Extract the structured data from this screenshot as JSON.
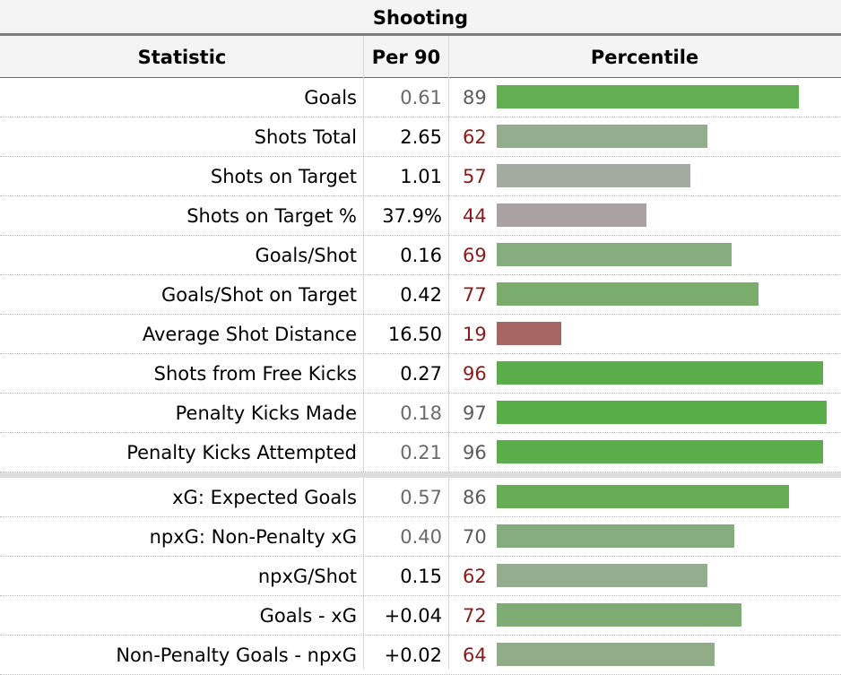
{
  "title": "Shooting",
  "headers": {
    "statistic": "Statistic",
    "per90": "Per 90",
    "percentile": "Percentile"
  },
  "colors": {
    "pct_red_text": "#8b1a1a",
    "pct_gray_text": "#5a5a5a",
    "per90_bold": "#000000",
    "per90_gray": "#6a6a6a"
  },
  "chart_data": {
    "type": "bar",
    "title": "Shooting",
    "xlabel": "Percentile",
    "xlim": [
      0,
      100
    ],
    "groups": [
      {
        "rows": [
          {
            "statistic": "Goals",
            "per90": "0.61",
            "percentile": 89,
            "per90_style": "gray",
            "pct_style": "gray",
            "bar_color": "#63ad53"
          },
          {
            "statistic": "Shots Total",
            "per90": "2.65",
            "percentile": 62,
            "per90_style": "bold",
            "pct_style": "red",
            "bar_color": "#94ad8e"
          },
          {
            "statistic": "Shots on Target",
            "per90": "1.01",
            "percentile": 57,
            "per90_style": "bold",
            "pct_style": "red",
            "bar_color": "#a3aba0"
          },
          {
            "statistic": "Shots on Target %",
            "per90": "37.9%",
            "percentile": 44,
            "per90_style": "bold",
            "pct_style": "red",
            "bar_color": "#aaa2a2"
          },
          {
            "statistic": "Goals/Shot",
            "per90": "0.16",
            "percentile": 69,
            "per90_style": "bold",
            "pct_style": "red",
            "bar_color": "#86ac7e"
          },
          {
            "statistic": "Goals/Shot on Target",
            "per90": "0.42",
            "percentile": 77,
            "per90_style": "bold",
            "pct_style": "red",
            "bar_color": "#7aad6c"
          },
          {
            "statistic": "Average Shot Distance",
            "per90": "16.50",
            "percentile": 19,
            "per90_style": "bold",
            "pct_style": "red",
            "bar_color": "#a76663"
          },
          {
            "statistic": "Shots from Free Kicks",
            "per90": "0.27",
            "percentile": 96,
            "per90_style": "bold",
            "pct_style": "red",
            "bar_color": "#5aad4a"
          },
          {
            "statistic": "Penalty Kicks Made",
            "per90": "0.18",
            "percentile": 97,
            "per90_style": "gray",
            "pct_style": "gray",
            "bar_color": "#59ad49"
          },
          {
            "statistic": "Penalty Kicks Attempted",
            "per90": "0.21",
            "percentile": 96,
            "per90_style": "gray",
            "pct_style": "gray",
            "bar_color": "#5aad4a"
          }
        ]
      },
      {
        "rows": [
          {
            "statistic": "xG: Expected Goals",
            "per90": "0.57",
            "percentile": 86,
            "per90_style": "gray",
            "pct_style": "gray",
            "bar_color": "#66ad56"
          },
          {
            "statistic": "npxG: Non-Penalty xG",
            "per90": "0.40",
            "percentile": 70,
            "per90_style": "gray",
            "pct_style": "gray",
            "bar_color": "#85ac7c"
          },
          {
            "statistic": "npxG/Shot",
            "per90": "0.15",
            "percentile": 62,
            "per90_style": "bold",
            "pct_style": "red",
            "bar_color": "#94ad8e"
          },
          {
            "statistic": "Goals - xG",
            "per90": "+0.04",
            "percentile": 72,
            "per90_style": "bold",
            "pct_style": "red",
            "bar_color": "#7fac74"
          },
          {
            "statistic": "Non-Penalty Goals - npxG",
            "per90": "+0.02",
            "percentile": 64,
            "per90_style": "bold",
            "pct_style": "red",
            "bar_color": "#90ad88"
          }
        ]
      }
    ]
  }
}
